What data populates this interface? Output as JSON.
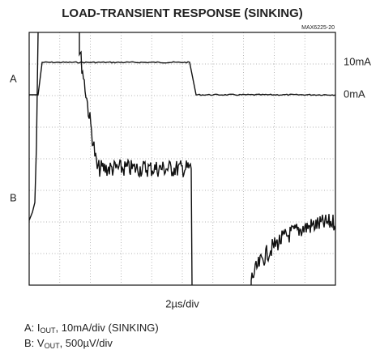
{
  "title": "LOAD-TRANSIENT RESPONSE (SINKING)",
  "figure_code": "MAX6225-20",
  "trace_labels": {
    "a": "A",
    "b": "B"
  },
  "level_labels": {
    "high": "10mA",
    "low": "0mA"
  },
  "time_scale": "2µs/div",
  "legend": [
    {
      "prefix": "A:  I",
      "sub": "OUT",
      "rest": ", 10mA/div (SINKING)"
    },
    {
      "prefix": "B:  V",
      "sub": "OUT",
      "rest": ", 500µV/div"
    }
  ]
}
